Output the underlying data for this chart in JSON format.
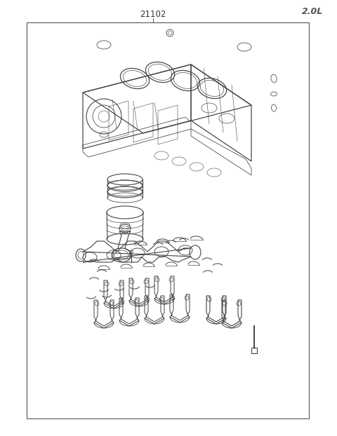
{
  "title": "21102",
  "subtitle": "2.0L",
  "bg_color": "#ffffff",
  "border_color": "#555555",
  "line_color": "#444444",
  "text_color": "#333333",
  "fig_width": 4.8,
  "fig_height": 6.22,
  "dpi": 100
}
